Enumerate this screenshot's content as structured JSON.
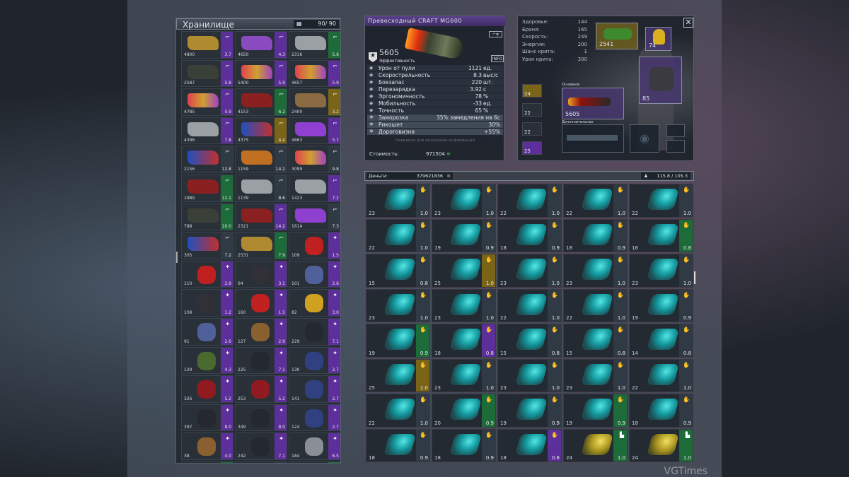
{
  "storage": {
    "title": "Хранилище",
    "count": "90/ 90",
    "items": [
      [
        "4800",
        "3.7",
        "purple",
        "w-gold"
      ],
      [
        "4650",
        "4.3",
        "purple",
        "w-purple"
      ],
      [
        "2316",
        "5.6",
        "green",
        "w-silver"
      ],
      [
        "2587",
        "5.8",
        "purple",
        "w-dark"
      ],
      [
        "5400",
        "5.9",
        "purple",
        "w-fire"
      ],
      [
        "4657",
        "5.9",
        "purple",
        "w-fire"
      ],
      [
        "4785",
        "5.9",
        "purple",
        "w-fire"
      ],
      [
        "4153",
        "6.2",
        "green",
        "w-red"
      ],
      [
        "2400",
        "3.2",
        "gold",
        "w-bronze"
      ],
      [
        "4396",
        "7.8",
        "purple",
        "w-silver"
      ],
      [
        "4375",
        "4.4",
        "gold",
        "w-blue"
      ],
      [
        "4663",
        "5.7",
        "purple",
        "w-violet"
      ],
      [
        "2156",
        "12.8",
        "none",
        "w-blue"
      ],
      [
        "1159",
        "14.2",
        "none",
        "w-orange"
      ],
      [
        "3099",
        "9.8",
        "none",
        "w-fire"
      ],
      [
        "1989",
        "12.1",
        "green",
        "w-red"
      ],
      [
        "1139",
        "8.6",
        "none",
        "w-silver"
      ],
      [
        "1423",
        "7.2",
        "purple",
        "w-silver"
      ],
      [
        "788",
        "10.0",
        "green",
        "w-dark"
      ],
      [
        "2321",
        "14.2",
        "purple",
        "w-red"
      ],
      [
        "1614",
        "7.3",
        "none",
        "w-violet"
      ],
      [
        "305",
        "7.2",
        "none",
        "w-blue"
      ],
      [
        "2531",
        "7.9",
        "green",
        "w-gold"
      ],
      [
        "109",
        "1.5",
        "purple",
        "h-red"
      ],
      [
        "110",
        "2.9",
        "purple",
        "h-red"
      ],
      [
        "64",
        "3.1",
        "purple",
        "h-dark"
      ],
      [
        "101",
        "2.6",
        "purple",
        "h-blue"
      ],
      [
        "109",
        "1.2",
        "purple",
        "h-dark"
      ],
      [
        "160",
        "1.5",
        "purple",
        "h-red"
      ],
      [
        "82",
        "3.0",
        "purple",
        "h-gold"
      ],
      [
        "91",
        "2.6",
        "purple",
        "h-blue"
      ],
      [
        "127",
        "2.9",
        "purple",
        "a-bronze"
      ],
      [
        "229",
        "7.1",
        "purple",
        "a-dark"
      ],
      [
        "129",
        "4.3",
        "purple",
        "a-green"
      ],
      [
        "225",
        "7.1",
        "purple",
        "a-dark"
      ],
      [
        "130",
        "2.7",
        "purple",
        "a-blue"
      ],
      [
        "326",
        "5.2",
        "purple",
        "a-red"
      ],
      [
        "253",
        "5.2",
        "purple",
        "a-red"
      ],
      [
        "141",
        "2.7",
        "purple",
        "a-blue"
      ],
      [
        "397",
        "8.0",
        "purple",
        "a-dark"
      ],
      [
        "349",
        "8.0",
        "purple",
        "a-dark"
      ],
      [
        "124",
        "2.7",
        "purple",
        "a-blue"
      ],
      [
        "38",
        "4.0",
        "purple",
        "a-bronze"
      ],
      [
        "242",
        "7.1",
        "purple",
        "a-dark"
      ],
      [
        "184",
        "6.5",
        "purple",
        "a-silver"
      ],
      [
        "",
        "",
        "green",
        "a-red"
      ],
      [
        "",
        "",
        "none",
        "a-red"
      ],
      [
        "",
        "",
        "green",
        "a-red"
      ]
    ]
  },
  "weapon": {
    "title": "Превосходный  CRAFT  MG600",
    "efficiency": "5605",
    "efficiency_label": "Эффективность",
    "info": "INFO",
    "stats": [
      {
        "label": "Урон  от  пули",
        "value": "1121",
        "unit": "ед.",
        "icon": "bullet-icon"
      },
      {
        "label": "Скорострельность",
        "value": "8.3",
        "unit": "выс/с",
        "icon": "rate-icon"
      },
      {
        "label": "Боезапас",
        "value": "220",
        "unit": "шт.",
        "icon": "ammo-icon"
      },
      {
        "label": "Перезарядка",
        "value": "3.92",
        "unit": "с",
        "icon": "reload-icon"
      },
      {
        "label": "Эргономичность",
        "value": "78",
        "unit": "%",
        "icon": "hand-icon"
      },
      {
        "label": "Мобильность",
        "value": "-33",
        "unit": "ед.",
        "icon": "feather-icon"
      },
      {
        "label": "Точность",
        "value": "65",
        "unit": "%",
        "icon": "crosshair-icon"
      }
    ],
    "bonuses": [
      {
        "label": "Заморозка",
        "value": "35%  замедления  на  6с",
        "icon": "snowflake-icon"
      },
      {
        "label": "Рикошет",
        "value": "30%",
        "icon": "ricochet-icon"
      },
      {
        "label": "Дороговизна",
        "value": "+55%",
        "icon": "money-icon"
      }
    ],
    "hint": "Наведите  для  получения  информации",
    "cost_label": "Стоимость:",
    "cost": "971504"
  },
  "character": {
    "stats": [
      {
        "label": "Здоровье:",
        "value": "144"
      },
      {
        "label": "Броня:",
        "value": "165"
      },
      {
        "label": "Скорость:",
        "value": "249"
      },
      {
        "label": "Энергия:",
        "value": "200"
      },
      {
        "label": "Шанс  крита:",
        "value": "1"
      },
      {
        "label": "Урон  крита:",
        "value": "300"
      }
    ],
    "secondary_weapon_level": "2541",
    "helmet_level": "74",
    "armor_level": "85",
    "primary_label": "Основное",
    "primary_level": "5605",
    "extra_label": "Дополнительное",
    "quick_slots": [
      "24",
      "22",
      "22",
      "25"
    ]
  },
  "money": {
    "label": "Деньги:",
    "value": "379621836",
    "weight": "115.8 / 105.3"
  },
  "inventory": [
    [
      "23",
      "1.0",
      "none"
    ],
    [
      "23",
      "1.0",
      "none"
    ],
    [
      "22",
      "1.0",
      "none"
    ],
    [
      "22",
      "1.0",
      "none"
    ],
    [
      "22",
      "1.0",
      "none"
    ],
    [
      "22",
      "1.0",
      "none"
    ],
    [
      "19",
      "0.9",
      "none"
    ],
    [
      "18",
      "0.9",
      "none"
    ],
    [
      "18",
      "0.9",
      "none"
    ],
    [
      "16",
      "0.8",
      "green"
    ],
    [
      "15",
      "0.8",
      "none"
    ],
    [
      "25",
      "1.0",
      "gold"
    ],
    [
      "23",
      "1.0",
      "none"
    ],
    [
      "23",
      "1.0",
      "none"
    ],
    [
      "23",
      "1.0",
      "none"
    ],
    [
      "23",
      "1.0",
      "none"
    ],
    [
      "23",
      "1.0",
      "none"
    ],
    [
      "22",
      "1.0",
      "none"
    ],
    [
      "22",
      "1.0",
      "none"
    ],
    [
      "19",
      "0.9",
      "none"
    ],
    [
      "19",
      "0.9",
      "green"
    ],
    [
      "18",
      "0.8",
      "purple"
    ],
    [
      "15",
      "0.8",
      "none"
    ],
    [
      "15",
      "0.8",
      "none"
    ],
    [
      "14",
      "0.8",
      "none"
    ],
    [
      "25",
      "1.0",
      "gold"
    ],
    [
      "23",
      "1.0",
      "none"
    ],
    [
      "23",
      "1.0",
      "none"
    ],
    [
      "23",
      "1.0",
      "none"
    ],
    [
      "22",
      "1.0",
      "none"
    ],
    [
      "22",
      "1.0",
      "none"
    ],
    [
      "20",
      "0.9",
      "green"
    ],
    [
      "19",
      "0.9",
      "none"
    ],
    [
      "19",
      "0.9",
      "green"
    ],
    [
      "18",
      "0.9",
      "none"
    ],
    [
      "18",
      "0.9",
      "none"
    ],
    [
      "18",
      "0.9",
      "none"
    ],
    [
      "18",
      "0.8",
      "purple"
    ],
    [
      "24",
      "1.0",
      "green",
      "gold"
    ],
    [
      "24",
      "1.0",
      "green",
      "gold"
    ]
  ],
  "watermark": "VGTimes",
  "colors": {
    "purple": "#5c2f9a",
    "green": "#1e6b3a",
    "gold": "#7a6418",
    "panel": "#1c222a"
  }
}
